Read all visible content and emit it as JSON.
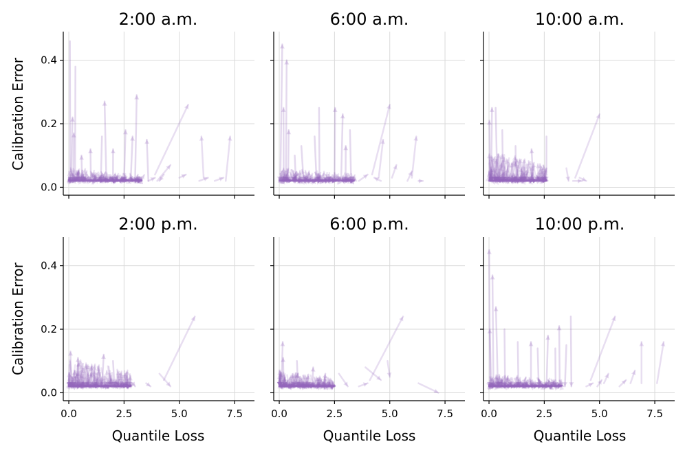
{
  "chart_data": {
    "type": "line",
    "description_type": "small-multiples arrow plot",
    "color": "#9467bd",
    "xlabel": "Quantile Loss",
    "ylabel": "Calibration Error",
    "xlim": [
      -0.25,
      8.4
    ],
    "ylim": [
      -0.025,
      0.49
    ],
    "xticks": [
      0.0,
      2.5,
      5.0,
      7.5
    ],
    "xtick_labels": [
      "0.0",
      "2.5",
      "5.0",
      "7.5"
    ],
    "yticks": [
      0.0,
      0.2,
      0.4
    ],
    "ytick_labels": [
      "0.0",
      "0.2",
      "0.4"
    ],
    "panels": [
      {
        "title": "2:00 a.m.",
        "cluster": {
          "xmax": 3.3,
          "ymax": 0.06,
          "count": 220
        },
        "tall": [
          [
            0.05,
            0.46
          ],
          [
            0.3,
            0.38
          ],
          [
            0.1,
            0.22
          ],
          [
            0.2,
            0.17
          ],
          [
            1.5,
            0.16
          ],
          [
            1.7,
            0.27
          ],
          [
            2.5,
            0.18
          ],
          [
            3.0,
            0.29
          ],
          [
            2.8,
            0.16
          ],
          [
            1.0,
            0.12
          ],
          [
            2.0,
            0.12
          ],
          [
            0.6,
            0.1
          ],
          [
            3.6,
            0.15
          ]
        ],
        "arrows": [
          [
            [
              3.9,
              0.04
            ],
            [
              5.4,
              0.26
            ]
          ],
          [
            [
              6.1,
              0.03
            ],
            [
              6.0,
              0.16
            ]
          ],
          [
            [
              7.1,
              0.02
            ],
            [
              7.3,
              0.16
            ]
          ],
          [
            [
              4.0,
              0.02
            ],
            [
              4.6,
              0.07
            ]
          ],
          [
            [
              5.0,
              0.03
            ],
            [
              5.3,
              0.04
            ]
          ],
          [
            [
              5.9,
              0.02
            ],
            [
              6.3,
              0.03
            ]
          ],
          [
            [
              4.3,
              0.04
            ],
            [
              4.1,
              0.02
            ]
          ],
          [
            [
              6.6,
              0.02
            ],
            [
              7.0,
              0.03
            ]
          ],
          [
            [
              3.6,
              0.02
            ],
            [
              3.9,
              0.03
            ]
          ]
        ]
      },
      {
        "title": "6:00 a.m.",
        "cluster": {
          "xmax": 3.4,
          "ymax": 0.06,
          "count": 220
        },
        "tall": [
          [
            0.05,
            0.45
          ],
          [
            0.3,
            0.4
          ],
          [
            0.2,
            0.25
          ],
          [
            0.4,
            0.18
          ],
          [
            1.6,
            0.16
          ],
          [
            1.8,
            0.25
          ],
          [
            2.5,
            0.25
          ],
          [
            2.8,
            0.23
          ],
          [
            3.0,
            0.13
          ],
          [
            1.0,
            0.13
          ],
          [
            0.7,
            0.1
          ],
          [
            3.2,
            0.18
          ]
        ],
        "arrows": [
          [
            [
              4.2,
              0.04
            ],
            [
              5.0,
              0.26
            ]
          ],
          [
            [
              6.0,
              0.03
            ],
            [
              6.2,
              0.16
            ]
          ],
          [
            [
              4.5,
              0.03
            ],
            [
              4.7,
              0.15
            ]
          ],
          [
            [
              5.1,
              0.03
            ],
            [
              5.3,
              0.07
            ]
          ],
          [
            [
              5.8,
              0.02
            ],
            [
              6.0,
              0.05
            ]
          ],
          [
            [
              3.6,
              0.02
            ],
            [
              4.0,
              0.04
            ]
          ],
          [
            [
              6.3,
              0.02
            ],
            [
              6.5,
              0.02
            ]
          ],
          [
            [
              4.6,
              0.02
            ],
            [
              4.3,
              0.03
            ]
          ]
        ]
      },
      {
        "title": "10:00 a.m.",
        "cluster": {
          "xmax": 2.6,
          "ymax": 0.12,
          "count": 260
        },
        "tall": [
          [
            0.1,
            0.25
          ],
          [
            0.3,
            0.25
          ],
          [
            0.05,
            0.21
          ],
          [
            0.6,
            0.18
          ],
          [
            2.6,
            0.16
          ],
          [
            1.2,
            0.13
          ],
          [
            2.0,
            0.12
          ]
        ],
        "arrows": [
          [
            [
              3.9,
              0.03
            ],
            [
              5.0,
              0.23
            ]
          ],
          [
            [
              3.5,
              0.06
            ],
            [
              3.6,
              0.02
            ]
          ],
          [
            [
              4.1,
              0.03
            ],
            [
              4.4,
              0.02
            ]
          ],
          [
            [
              3.8,
              0.02
            ],
            [
              4.2,
              0.02
            ]
          ]
        ]
      },
      {
        "title": "2:00 p.m.",
        "cluster": {
          "xmax": 2.8,
          "ymax": 0.11,
          "count": 260
        },
        "tall": [
          [
            0.1,
            0.13
          ],
          [
            1.5,
            0.12
          ],
          [
            0.4,
            0.11
          ],
          [
            2.0,
            0.1
          ]
        ],
        "arrows": [
          [
            [
              4.3,
              0.04
            ],
            [
              5.7,
              0.24
            ]
          ],
          [
            [
              4.1,
              0.06
            ],
            [
              4.6,
              0.02
            ]
          ],
          [
            [
              3.5,
              0.03
            ],
            [
              3.7,
              0.02
            ]
          ],
          [
            [
              2.9,
              0.03
            ],
            [
              3.0,
              0.02
            ]
          ]
        ]
      },
      {
        "title": "6:00 p.m.",
        "cluster": {
          "xmax": 2.5,
          "ymax": 0.07,
          "count": 230
        },
        "tall": [
          [
            0.1,
            0.16
          ],
          [
            0.2,
            0.11
          ],
          [
            0.8,
            0.1
          ],
          [
            1.5,
            0.08
          ],
          [
            2.0,
            0.06
          ]
        ],
        "arrows": [
          [
            [
              4.1,
              0.04
            ],
            [
              5.6,
              0.24
            ]
          ],
          [
            [
              3.9,
              0.08
            ],
            [
              4.6,
              0.04
            ]
          ],
          [
            [
              4.9,
              0.1
            ],
            [
              5.0,
              0.05
            ]
          ],
          [
            [
              6.3,
              0.03
            ],
            [
              7.2,
              0.0
            ]
          ],
          [
            [
              3.6,
              0.02
            ],
            [
              4.0,
              0.03
            ]
          ],
          [
            [
              2.7,
              0.06
            ],
            [
              3.1,
              0.02
            ]
          ]
        ]
      },
      {
        "title": "10:00 p.m.",
        "cluster": {
          "xmax": 3.3,
          "ymax": 0.06,
          "count": 220
        },
        "tall": [
          [
            0.05,
            0.45
          ],
          [
            0.2,
            0.37
          ],
          [
            0.4,
            0.27
          ],
          [
            0.1,
            0.2
          ],
          [
            0.7,
            0.2
          ],
          [
            1.3,
            0.16
          ],
          [
            1.9,
            0.16
          ],
          [
            2.6,
            0.18
          ],
          [
            3.2,
            0.21
          ],
          [
            3.7,
            0.24
          ],
          [
            2.2,
            0.14
          ],
          [
            3.0,
            0.14
          ],
          [
            3.5,
            0.15
          ]
        ],
        "arrows": [
          [
            [
              4.6,
              0.04
            ],
            [
              5.7,
              0.24
            ]
          ],
          [
            [
              6.9,
              0.03
            ],
            [
              6.9,
              0.16
            ]
          ],
          [
            [
              7.6,
              0.03
            ],
            [
              7.9,
              0.16
            ]
          ],
          [
            [
              6.4,
              0.03
            ],
            [
              6.6,
              0.07
            ]
          ],
          [
            [
              5.2,
              0.03
            ],
            [
              5.4,
              0.06
            ]
          ],
          [
            [
              4.9,
              0.02
            ],
            [
              5.1,
              0.04
            ]
          ],
          [
            [
              4.4,
              0.02
            ],
            [
              4.7,
              0.03
            ]
          ],
          [
            [
              5.9,
              0.02
            ],
            [
              6.2,
              0.04
            ]
          ]
        ]
      }
    ]
  }
}
